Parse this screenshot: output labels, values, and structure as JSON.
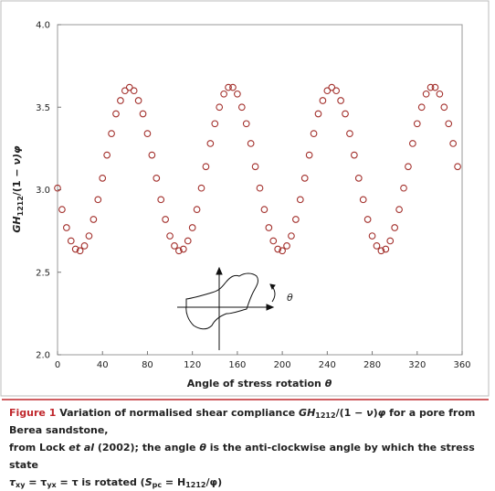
{
  "chart_data": {
    "type": "scatter",
    "x_label": [
      "Angle of stress rotation ",
      "θ"
    ],
    "y_label": [
      "GH",
      "1212",
      "/(1 − ",
      "ν",
      ")φ"
    ],
    "annotation": "θ",
    "color": "#a3302c",
    "series": [
      {
        "x": [
          0,
          4,
          8,
          12,
          16,
          20,
          24,
          28,
          32,
          36,
          40,
          44,
          48,
          52,
          56,
          60,
          64,
          68,
          72,
          76,
          80,
          84,
          88,
          92,
          96,
          100,
          104,
          108,
          112,
          116,
          120,
          124,
          128,
          132,
          136,
          140,
          144,
          148,
          152,
          156,
          160,
          164,
          168,
          172,
          176,
          180,
          184,
          188,
          192,
          196,
          200,
          204,
          208,
          212,
          216,
          220,
          224,
          228,
          232,
          236,
          240,
          244,
          248,
          252,
          256,
          260,
          264,
          268,
          272,
          276,
          280,
          284,
          288,
          292,
          296,
          300,
          304,
          308,
          312,
          316,
          320,
          324,
          328,
          332,
          336,
          340,
          344,
          348,
          352,
          356
        ],
        "values": [
          3.01,
          2.88,
          2.77,
          2.69,
          2.64,
          2.63,
          2.66,
          2.72,
          2.82,
          2.94,
          3.07,
          3.21,
          3.34,
          3.46,
          3.54,
          3.6,
          3.62,
          3.6,
          3.54,
          3.46,
          3.34,
          3.21,
          3.07,
          2.94,
          2.82,
          2.72,
          2.66,
          2.63,
          2.64,
          2.69,
          2.77,
          2.88,
          3.01,
          3.14,
          3.28,
          3.4,
          3.5,
          3.58,
          3.62,
          3.62,
          3.58,
          3.5,
          3.4,
          3.28,
          3.14,
          3.01,
          2.88,
          2.77,
          2.69,
          2.64,
          2.63,
          2.66,
          2.72,
          2.82,
          2.94,
          3.07,
          3.21,
          3.34,
          3.46,
          3.54,
          3.6,
          3.62,
          3.6,
          3.54,
          3.46,
          3.34,
          3.21,
          3.07,
          2.94,
          2.82,
          2.72,
          2.66,
          2.63,
          2.64,
          2.69,
          2.77,
          2.88,
          3.01,
          3.14,
          3.28,
          3.4,
          3.5,
          3.58,
          3.62,
          3.62,
          3.58,
          3.5,
          3.4,
          3.28,
          3.14
        ]
      }
    ],
    "xlim": [
      0,
      360
    ],
    "xticks": [
      0,
      40,
      80,
      120,
      160,
      200,
      240,
      280,
      320,
      360
    ],
    "ylim": [
      2,
      4
    ],
    "yticks": [
      {
        "value": 2,
        "label": "2.0"
      },
      {
        "value": 2.5,
        "label": "2.5"
      },
      {
        "value": 3,
        "label": "3.0"
      },
      {
        "value": 3.5,
        "label": "3.5"
      },
      {
        "value": 4,
        "label": "4.0"
      }
    ]
  },
  "caption": {
    "lines": [
      [
        "Figure 1",
        " Variation of normalised shear compliance ",
        "GH",
        "1212",
        "/(1 − ",
        "ν",
        ")",
        "φ",
        " for a pore from Berea sandstone,"
      ],
      [
        "from Lock ",
        "et al",
        " (2002); the angle ",
        "θ",
        " is the anti-clockwise angle by which the stress state"
      ],
      [
        "τ",
        "xy",
        " = τ",
        "yx",
        " = τ is rotated (",
        "S",
        "pc",
        " = H",
        "1212",
        "/φ)"
      ]
    ]
  }
}
